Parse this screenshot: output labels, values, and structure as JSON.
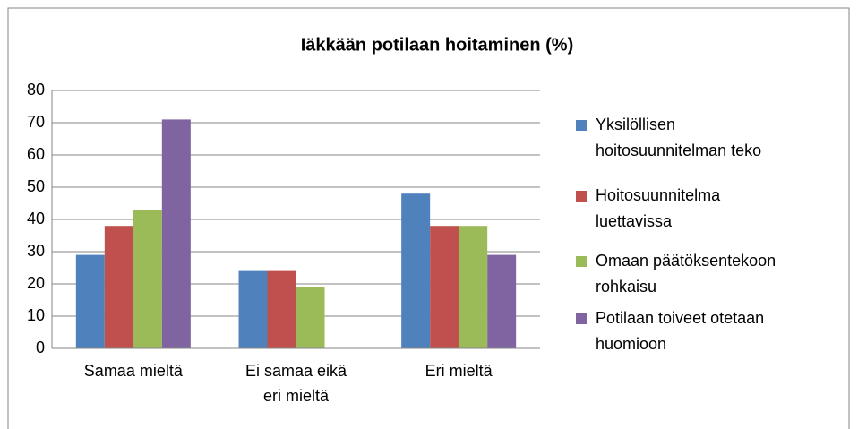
{
  "chart_data": {
    "type": "bar",
    "title": "Iäkkään potilaan hoitaminen (%)",
    "categories": [
      "Samaa mieltä",
      "Ei samaa eikä eri mieltä",
      "Eri mieltä"
    ],
    "series": [
      {
        "name": "Yksilöllisen hoitosuunnitelman teko",
        "color": "#4f81bd",
        "values": [
          29,
          24,
          48
        ]
      },
      {
        "name": "Hoitosuunnitelma luettavissa",
        "color": "#c0504d",
        "values": [
          38,
          24,
          38
        ]
      },
      {
        "name": "Omaan päätöksentekoon rohkaisu",
        "color": "#9bbb59",
        "values": [
          43,
          19,
          38
        ]
      },
      {
        "name": "Potilaan toiveet otetaan huomioon",
        "color": "#8064a2",
        "values": [
          71,
          0,
          29
        ]
      }
    ],
    "ylim": [
      0,
      80
    ],
    "yticks": [
      0,
      10,
      20,
      30,
      40,
      50,
      60,
      70,
      80
    ],
    "grid": true,
    "legend": "right"
  }
}
